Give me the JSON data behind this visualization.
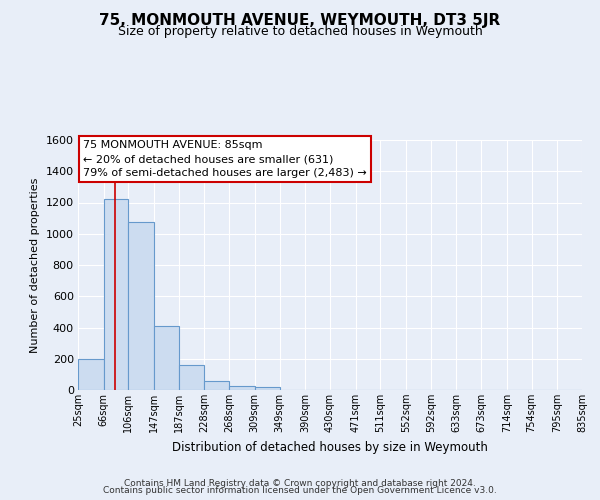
{
  "title": "75, MONMOUTH AVENUE, WEYMOUTH, DT3 5JR",
  "subtitle": "Size of property relative to detached houses in Weymouth",
  "xlabel": "Distribution of detached houses by size in Weymouth",
  "ylabel": "Number of detached properties",
  "footer_line1": "Contains HM Land Registry data © Crown copyright and database right 2024.",
  "footer_line2": "Contains public sector information licensed under the Open Government Licence v3.0.",
  "bin_labels": [
    "25sqm",
    "66sqm",
    "106sqm",
    "147sqm",
    "187sqm",
    "228sqm",
    "268sqm",
    "309sqm",
    "349sqm",
    "390sqm",
    "430sqm",
    "471sqm",
    "511sqm",
    "552sqm",
    "592sqm",
    "633sqm",
    "673sqm",
    "714sqm",
    "754sqm",
    "795sqm",
    "835sqm"
  ],
  "bar_values": [
    200,
    1225,
    1075,
    410,
    160,
    55,
    25,
    20,
    0,
    0,
    0,
    0,
    0,
    0,
    0,
    0,
    0,
    0,
    0,
    0
  ],
  "bar_color": "#ccdcf0",
  "bar_edge_color": "#6699cc",
  "property_line_x": 85,
  "bin_edges_sqm": [
    25,
    66,
    106,
    147,
    187,
    228,
    268,
    309,
    349,
    390,
    430,
    471,
    511,
    552,
    592,
    633,
    673,
    714,
    754,
    795,
    835
  ],
  "ann_line1": "75 MONMOUTH AVENUE: 85sqm",
  "ann_line2": "← 20% of detached houses are smaller (631)",
  "ann_line3": "79% of semi-detached houses are larger (2,483) →",
  "ylim": [
    0,
    1600
  ],
  "yticks": [
    0,
    200,
    400,
    600,
    800,
    1000,
    1200,
    1400,
    1600
  ],
  "background_color": "#e8eef8",
  "plot_background_color": "#e8eef8",
  "grid_color": "#ffffff",
  "title_fontsize": 11,
  "subtitle_fontsize": 9,
  "red_line_color": "#cc0000",
  "ann_box_edge_color": "#cc0000",
  "ann_box_face_color": "#ffffff"
}
